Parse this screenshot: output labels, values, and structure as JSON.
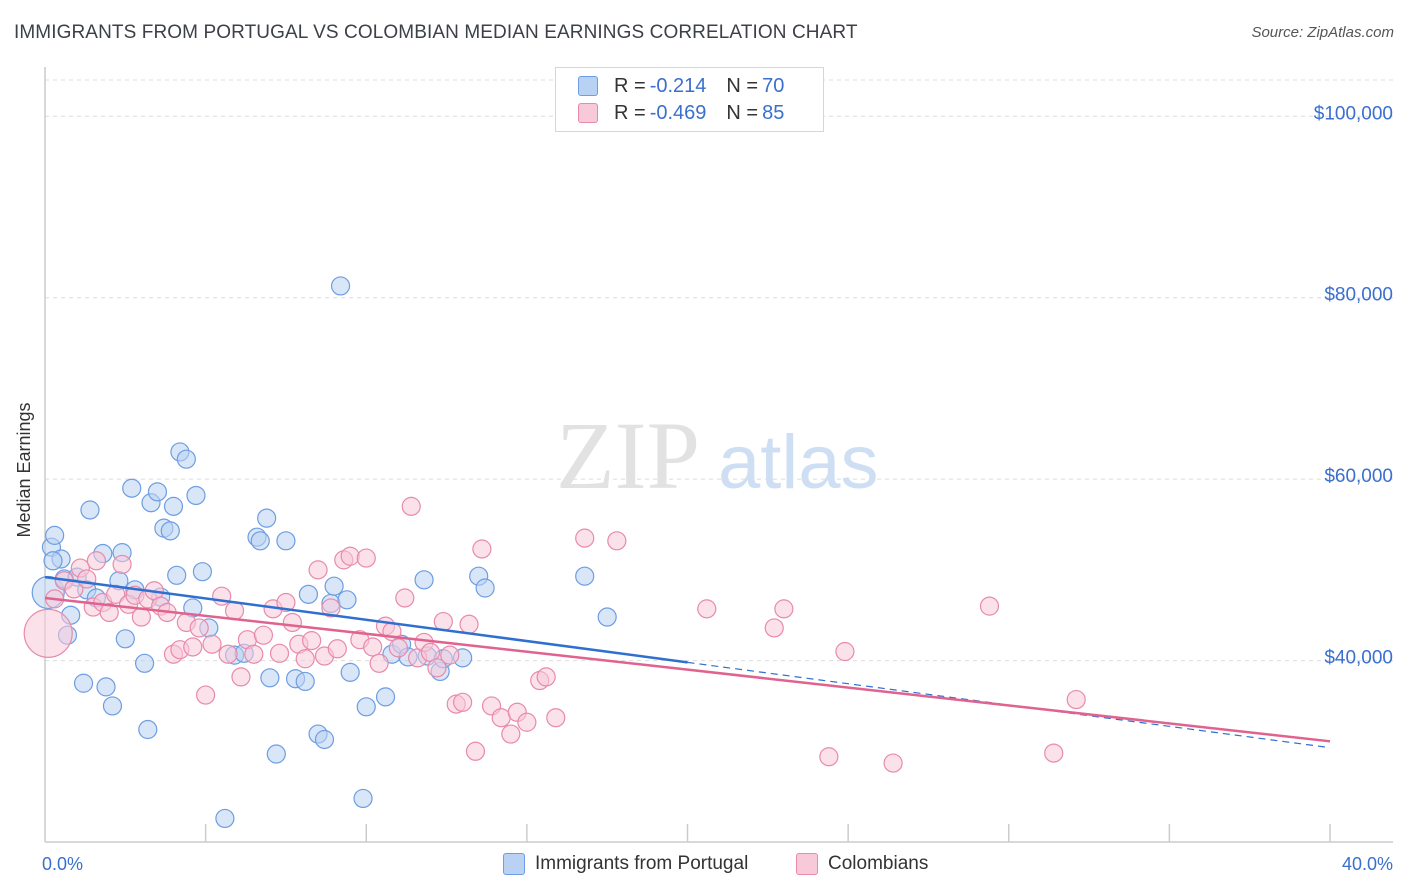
{
  "title": "IMMIGRANTS FROM PORTUGAL VS COLOMBIAN MEDIAN EARNINGS CORRELATION CHART",
  "source": "Source: ZipAtlas.com",
  "watermark": {
    "zip": "ZIP",
    "atlas": "atlas"
  },
  "legend_stats": [
    {
      "r_label": "R = ",
      "r_value": "-0.214",
      "n_label": "N = ",
      "n_value": "70",
      "color": "#a9c6f0"
    },
    {
      "r_label": "R = ",
      "r_value": "-0.469",
      "n_label": "N = ",
      "n_value": "85",
      "color": "#f6b8cd"
    }
  ],
  "chart_data": {
    "type": "scatter",
    "title": "IMMIGRANTS FROM PORTUGAL VS COLOMBIAN MEDIAN EARNINGS CORRELATION CHART",
    "xlabel": "",
    "ylabel": "Median Earnings",
    "x_tick_labels": [
      "0.0%",
      "40.0%"
    ],
    "y_tick_labels": [
      "$40,000",
      "$60,000",
      "$80,000",
      "$100,000"
    ],
    "y_ticks": [
      40000,
      60000,
      80000,
      100000
    ],
    "xlim": [
      0,
      40
    ],
    "ylim": [
      20000,
      104000
    ],
    "grid": "horizontal dashed",
    "legend_position": "bottom",
    "series": [
      {
        "name": "Immigrants from Portugal",
        "color": "#6d9de2",
        "fill": "#b9d1f3",
        "trend": {
          "x": [
            0,
            20
          ],
          "y": [
            49200,
            39800
          ]
        },
        "trend_dashed_extension": {
          "x": [
            20,
            40
          ],
          "y": [
            39800,
            30400
          ]
        },
        "points": [
          [
            0.1,
            47500
          ],
          [
            0.2,
            52500
          ],
          [
            0.3,
            53800
          ],
          [
            0.5,
            51200
          ],
          [
            0.6,
            49000
          ],
          [
            0.7,
            42800
          ],
          [
            0.8,
            45000
          ],
          [
            1.0,
            49200
          ],
          [
            1.2,
            37500
          ],
          [
            1.3,
            47800
          ],
          [
            1.4,
            56600
          ],
          [
            1.6,
            46900
          ],
          [
            1.8,
            51800
          ],
          [
            1.9,
            37100
          ],
          [
            2.1,
            35000
          ],
          [
            2.3,
            48800
          ],
          [
            2.4,
            51900
          ],
          [
            2.5,
            42400
          ],
          [
            2.7,
            59000
          ],
          [
            2.8,
            47800
          ],
          [
            3.1,
            39700
          ],
          [
            3.2,
            32400
          ],
          [
            3.3,
            57400
          ],
          [
            3.5,
            58600
          ],
          [
            3.6,
            47000
          ],
          [
            3.7,
            54600
          ],
          [
            3.9,
            54300
          ],
          [
            4.0,
            57000
          ],
          [
            4.1,
            49400
          ],
          [
            4.2,
            63000
          ],
          [
            4.4,
            62200
          ],
          [
            4.6,
            45800
          ],
          [
            4.7,
            58200
          ],
          [
            4.9,
            49800
          ],
          [
            5.1,
            43600
          ],
          [
            5.6,
            22600
          ],
          [
            5.9,
            40600
          ],
          [
            6.2,
            40800
          ],
          [
            6.6,
            53600
          ],
          [
            6.7,
            53200
          ],
          [
            6.9,
            55700
          ],
          [
            7.0,
            38100
          ],
          [
            7.2,
            29700
          ],
          [
            7.5,
            53200
          ],
          [
            7.8,
            38000
          ],
          [
            8.1,
            37700
          ],
          [
            8.2,
            47300
          ],
          [
            8.5,
            31900
          ],
          [
            8.7,
            31300
          ],
          [
            8.9,
            46300
          ],
          [
            9.0,
            48200
          ],
          [
            9.2,
            81300
          ],
          [
            9.4,
            46700
          ],
          [
            9.5,
            38700
          ],
          [
            9.9,
            24800
          ],
          [
            10.0,
            34900
          ],
          [
            10.6,
            36000
          ],
          [
            10.8,
            40700
          ],
          [
            11.1,
            41800
          ],
          [
            11.3,
            40400
          ],
          [
            11.8,
            48900
          ],
          [
            11.9,
            40500
          ],
          [
            12.3,
            38800
          ],
          [
            12.4,
            40200
          ],
          [
            13.0,
            40300
          ],
          [
            13.5,
            49300
          ],
          [
            13.7,
            48000
          ],
          [
            16.8,
            49300
          ],
          [
            17.5,
            44800
          ],
          [
            0.25,
            51000
          ]
        ]
      },
      {
        "name": "Colombians",
        "color": "#e88aab",
        "fill": "#f8c9d8",
        "trend": {
          "x": [
            0,
            40
          ],
          "y": [
            46900,
            31100
          ]
        },
        "points": [
          [
            0.1,
            43000
          ],
          [
            0.3,
            46800
          ],
          [
            0.6,
            48800
          ],
          [
            0.9,
            47900
          ],
          [
            1.1,
            50200
          ],
          [
            1.3,
            49000
          ],
          [
            1.5,
            45900
          ],
          [
            1.6,
            51000
          ],
          [
            1.8,
            46400
          ],
          [
            2.0,
            45300
          ],
          [
            2.2,
            47300
          ],
          [
            2.4,
            50600
          ],
          [
            2.6,
            46200
          ],
          [
            2.8,
            47200
          ],
          [
            3.0,
            44800
          ],
          [
            3.2,
            46800
          ],
          [
            3.4,
            47700
          ],
          [
            3.6,
            46000
          ],
          [
            3.8,
            45300
          ],
          [
            4.0,
            40700
          ],
          [
            4.2,
            41200
          ],
          [
            4.4,
            44200
          ],
          [
            4.6,
            41500
          ],
          [
            4.8,
            43600
          ],
          [
            5.0,
            36200
          ],
          [
            5.2,
            41800
          ],
          [
            5.5,
            47100
          ],
          [
            5.7,
            40700
          ],
          [
            5.9,
            45500
          ],
          [
            6.1,
            38200
          ],
          [
            6.3,
            42300
          ],
          [
            6.5,
            40700
          ],
          [
            6.8,
            42800
          ],
          [
            7.1,
            45700
          ],
          [
            7.3,
            40800
          ],
          [
            7.5,
            46400
          ],
          [
            7.7,
            44200
          ],
          [
            7.9,
            41800
          ],
          [
            8.1,
            40200
          ],
          [
            8.3,
            42200
          ],
          [
            8.5,
            50000
          ],
          [
            8.7,
            40500
          ],
          [
            8.9,
            45800
          ],
          [
            9.1,
            41300
          ],
          [
            9.3,
            51100
          ],
          [
            9.5,
            51500
          ],
          [
            9.8,
            42300
          ],
          [
            10.0,
            51300
          ],
          [
            10.2,
            41500
          ],
          [
            10.4,
            39700
          ],
          [
            10.6,
            43800
          ],
          [
            10.8,
            43200
          ],
          [
            11.0,
            41400
          ],
          [
            11.2,
            46900
          ],
          [
            11.4,
            57000
          ],
          [
            11.6,
            40300
          ],
          [
            11.8,
            42000
          ],
          [
            12.0,
            40900
          ],
          [
            12.2,
            39200
          ],
          [
            12.4,
            44300
          ],
          [
            12.6,
            40600
          ],
          [
            12.8,
            35200
          ],
          [
            13.0,
            35400
          ],
          [
            13.2,
            44000
          ],
          [
            13.4,
            30000
          ],
          [
            13.6,
            52300
          ],
          [
            13.9,
            35000
          ],
          [
            14.2,
            33700
          ],
          [
            14.5,
            31900
          ],
          [
            14.7,
            34300
          ],
          [
            15.0,
            33200
          ],
          [
            15.4,
            37800
          ],
          [
            15.6,
            38200
          ],
          [
            15.9,
            33700
          ],
          [
            16.8,
            53500
          ],
          [
            17.8,
            53200
          ],
          [
            20.6,
            45700
          ],
          [
            22.7,
            43600
          ],
          [
            23.0,
            45700
          ],
          [
            24.4,
            29400
          ],
          [
            24.9,
            41000
          ],
          [
            26.4,
            28700
          ],
          [
            29.4,
            46000
          ],
          [
            31.4,
            29800
          ],
          [
            32.1,
            35700
          ]
        ]
      }
    ]
  }
}
